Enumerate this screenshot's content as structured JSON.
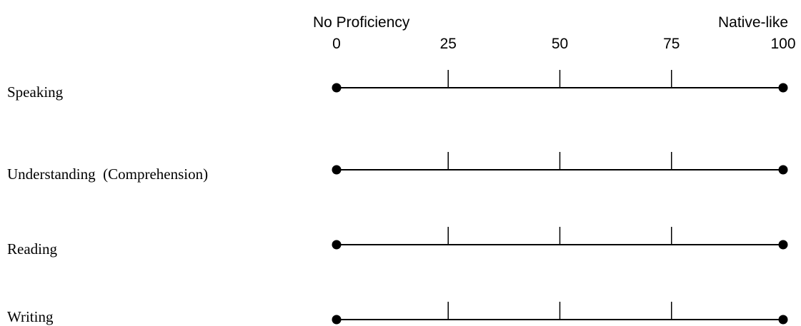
{
  "scale": {
    "left_label": "No Proficiency",
    "right_label": "Native-like",
    "ticks": [
      0,
      25,
      50,
      75,
      100
    ]
  },
  "rows": [
    "Speaking",
    "Understanding  (Comprehension)",
    "Reading",
    "Writing"
  ]
}
